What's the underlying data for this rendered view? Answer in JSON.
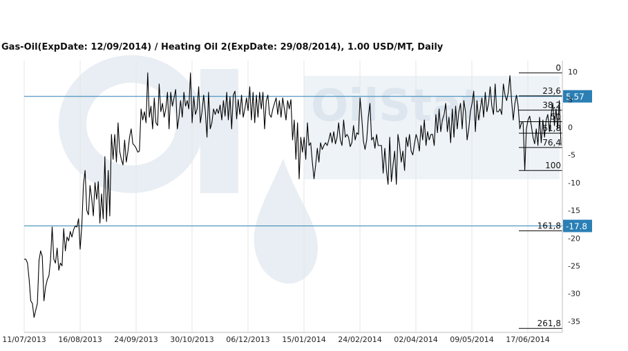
{
  "chart_title": "Gas-Oil(ExpDate: 12/09/2014) / Heating Oil 2(ExpDate: 29/08/2014), 1.00 USD/MT, Daily",
  "watermark_text": "OilStat",
  "colors": {
    "series": "#000000",
    "hline": "#2a7fb5",
    "badge": "#2a7fb5",
    "grid": "#e6e6e6",
    "watermark": "#e8eef3"
  },
  "chart_data": {
    "type": "line",
    "title": "Gas-Oil(ExpDate: 12/09/2014) / Heating Oil 2(ExpDate: 29/08/2014), 1.00 USD/MT, Daily",
    "ylim": [
      -37,
      12
    ],
    "y_ticks": [
      10,
      5,
      0,
      -5,
      -10,
      -15,
      -20,
      -25,
      -30,
      -35
    ],
    "x_ticks": [
      "11/07/2013",
      "16/08/2013",
      "24/09/2013",
      "30/10/2013",
      "06/12/2013",
      "15/01/2014",
      "24/02/2014",
      "02/04/2014",
      "09/05/2014",
      "17/06/2014"
    ],
    "grid": "vertical lines at x ticks",
    "y_axis_side": "right",
    "series": [
      {
        "values": [
          -23.8,
          -23.8,
          -24.5,
          -27.5,
          -31.3,
          -31.8,
          -34.3,
          -33.0,
          -31.8,
          -24.0,
          -22.3,
          -23.3,
          -31.3,
          -28.8,
          -27.5,
          -26.8,
          -24.0,
          -18.0,
          -23.8,
          -24.5,
          -21.8,
          -25.8,
          -24.5,
          -25.0,
          -18.3,
          -22.3,
          -19.8,
          -20.5,
          -18.8,
          -19.8,
          -18.5,
          -17.8,
          -18.0,
          -16.5,
          -22.0,
          -17.8,
          -10.3,
          -7.8,
          -15.0,
          -15.8,
          -10.5,
          -12.8,
          -16.0,
          -10.0,
          -13.0,
          -9.8,
          -17.3,
          -12.0,
          -16.5,
          -5.3,
          -17.0,
          -7.8,
          -16.0,
          -1.3,
          -5.8,
          -1.3,
          -6.3,
          0.8,
          -4.3,
          -5.8,
          -6.8,
          -2.3,
          -6.3,
          -4.3,
          -1.8,
          -0.3,
          -3.0,
          -3.3,
          -3.8,
          -4.5,
          -4.3,
          3.3,
          1.3,
          2.8,
          0.8,
          9.8,
          1.8,
          3.8,
          -0.3,
          5.3,
          0.8,
          0.3,
          7.8,
          2.8,
          4.3,
          1.8,
          3.3,
          6.3,
          -0.3,
          6.3,
          3.8,
          5.3,
          6.8,
          -0.3,
          1.8,
          4.8,
          1.8,
          6.3,
          3.8,
          4.8,
          3.3,
          9.8,
          0.8,
          5.5,
          2.3,
          3.3,
          7.3,
          0.8,
          2.8,
          5.8,
          2.8,
          -1.8,
          6.3,
          -0.3,
          0.8,
          3.3,
          2.3,
          3.3,
          2.5,
          4.0,
          1.3,
          4.8,
          2.0,
          6.3,
          1.3,
          5.5,
          -0.3,
          5.8,
          6.5,
          1.5,
          5.0,
          2.3,
          5.8,
          1.8,
          3.3,
          5.3,
          3.0,
          7.3,
          1.3,
          6.3,
          0.8,
          5.8,
          1.8,
          6.3,
          3.3,
          6.3,
          -0.3,
          4.8,
          5.8,
          2.3,
          1.8,
          3.3,
          4.3,
          5.3,
          2.3,
          4.8,
          1.8,
          5.3,
          3.3,
          1.3,
          4.8,
          3.3,
          5.0,
          -2.3,
          1.3,
          -5.8,
          0.8,
          -9.3,
          -1.8,
          -4.5,
          -1.8,
          -5.8,
          0.8,
          -3.3,
          -2.8,
          -6.3,
          -9.3,
          -6.8,
          -3.8,
          -6.3,
          -2.8,
          -4.0,
          -3.3,
          -2.8,
          -3.3,
          -2.3,
          -1.0,
          -2.8,
          -0.8,
          -3.0,
          -1.8,
          0.8,
          -2.3,
          -3.3,
          1.3,
          -1.8,
          -1.3,
          -1.8,
          -3.5,
          -2.8,
          0.3,
          -2.3,
          -1.0,
          -1.3,
          5.3,
          1.8,
          -2.5,
          -4.0,
          -2.3,
          1.8,
          4.3,
          -2.3,
          -1.8,
          -3.8,
          -1.3,
          -3.3,
          -3.3,
          -3.3,
          -8.3,
          -3.8,
          -7.8,
          -10.3,
          -1.8,
          -9.8,
          -6.8,
          -4.3,
          -10.3,
          -1.3,
          -3.3,
          -6.3,
          -4.3,
          -7.8,
          -1.8,
          -3.5,
          -1.3,
          -4.3,
          -5.0,
          -3.0,
          -1.3,
          -2.3,
          -4.3,
          0.3,
          -2.3,
          1.3,
          -3.3,
          -0.8,
          -2.3,
          -1.3,
          -1.3,
          -3.3,
          2.3,
          -1.0,
          3.3,
          -0.8,
          1.3,
          2.3,
          4.3,
          -0.8,
          1.8,
          -2.8,
          3.3,
          -1.8,
          3.8,
          -0.3,
          2.8,
          4.3,
          -0.3,
          4.8,
          2.8,
          -2.3,
          -0.3,
          2.8,
          4.3,
          6.5,
          -0.8,
          4.8,
          1.3,
          3.3,
          5.3,
          1.8,
          6.3,
          2.8,
          4.3,
          7.3,
          3.8,
          2.3,
          7.8,
          2.8,
          2.8,
          3.3,
          2.3,
          7.8,
          5.8,
          4.8,
          6.3,
          9.3,
          4.8,
          1.3,
          4.3,
          5.8,
          3.8,
          -0.3,
          0.8,
          0.8,
          -7.8,
          -0.3,
          1.3,
          2.0,
          0.3,
          -1.8,
          -3.0,
          -0.3,
          -3.3,
          1.8,
          -2.8,
          1.3,
          -1.8,
          1.3,
          2.3,
          -0.8,
          2.3,
          4.3,
          0.3,
          3.3,
          -0.3,
          4.8,
          -3.3
        ]
      }
    ],
    "hlines": [
      {
        "value": 5.57,
        "label": "5.57"
      },
      {
        "value": -17.8,
        "label": "-17.8"
      }
    ],
    "fibonacci": {
      "high": 9.8,
      "low": -7.8,
      "levels": [
        {
          "label": "0",
          "value": 9.8
        },
        {
          "label": "23,6",
          "value": 5.65
        },
        {
          "label": "38,2",
          "value": 3.08
        },
        {
          "label": "50",
          "value": 1.0
        },
        {
          "label": "61,8",
          "value": -1.08
        },
        {
          "label": "76,4",
          "value": -3.65
        },
        {
          "label": "100",
          "value": -7.8
        },
        {
          "label": "161,8",
          "value": -18.68
        },
        {
          "label": "261,8",
          "value": -36.28
        }
      ]
    }
  }
}
